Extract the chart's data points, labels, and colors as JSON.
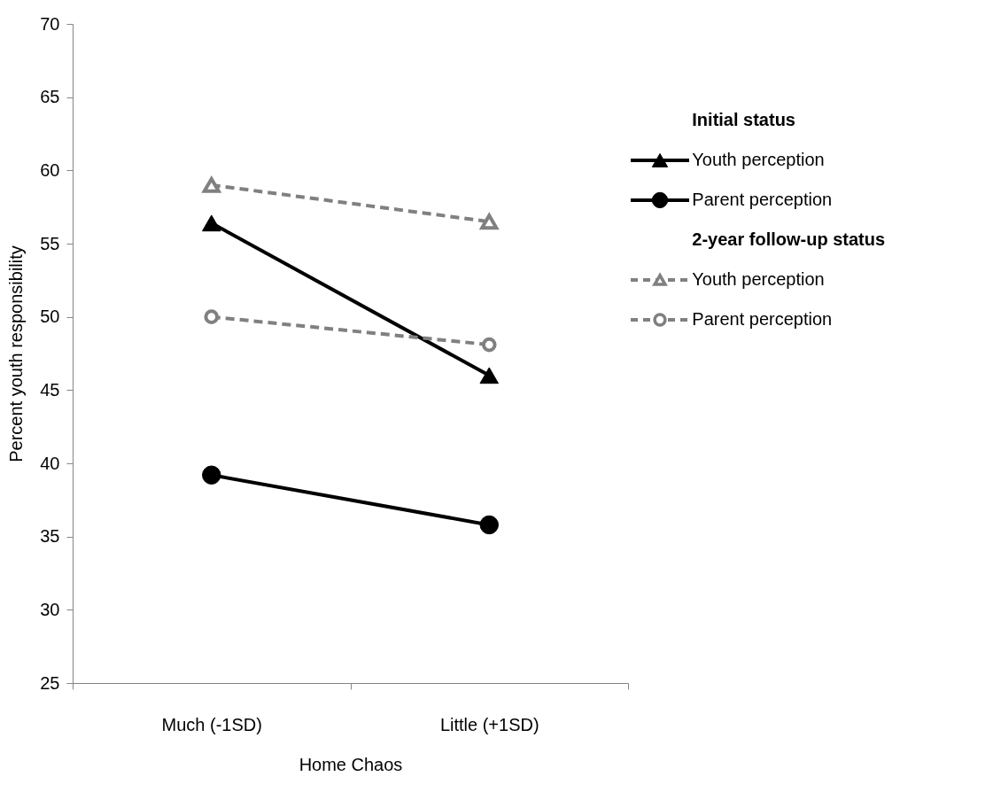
{
  "chart_data": {
    "type": "line",
    "xlabel": "Home Chaos",
    "ylabel": "Percent youth responsibility",
    "categories": [
      "Much (-1SD)",
      "Little (+1SD)"
    ],
    "series": [
      {
        "name": "Youth perception",
        "color": "#000000",
        "values": [
          56.4,
          46.0
        ],
        "marker": "triangle",
        "line_style": "solid"
      },
      {
        "name": "Parent perception",
        "color": "#000000",
        "values": [
          39.2,
          35.8
        ],
        "marker": "circle",
        "line_style": "solid"
      },
      {
        "name": "Youth perception",
        "color": "#808080",
        "values": [
          59.0,
          56.5
        ],
        "marker": "triangle",
        "line_style": "dashed"
      },
      {
        "name": "Parent perception",
        "color": "#808080",
        "values": [
          50.0,
          48.1
        ],
        "marker": "circle",
        "line_style": "dashed"
      }
    ],
    "annotations": [
      "Initial status",
      "2-year follow-up status"
    ],
    "ylim": [
      25,
      70
    ],
    "yticks": [
      25,
      30,
      35,
      40,
      45,
      50,
      55,
      60,
      65,
      70
    ],
    "grid": false,
    "legend": "right"
  }
}
